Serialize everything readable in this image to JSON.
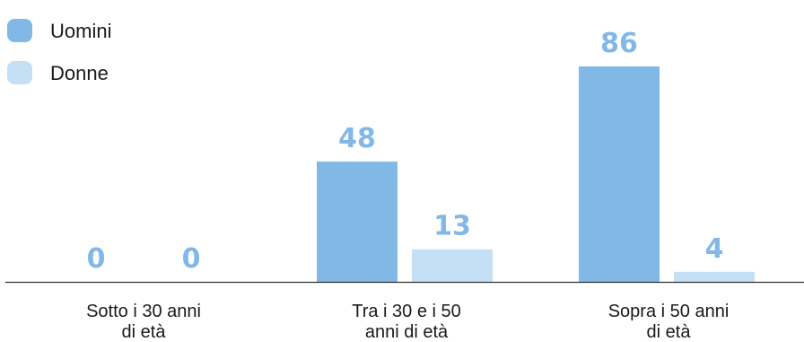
{
  "chart_data": {
    "type": "bar",
    "categories": [
      [
        "Sotto i 30 anni",
        "di età"
      ],
      [
        "Tra i 30 e i 50",
        "anni di età"
      ],
      [
        "Sopra i 50 anni",
        "di età"
      ]
    ],
    "series": [
      {
        "name": "Uomini",
        "color": "#82b8e6",
        "values": [
          0,
          48,
          86
        ]
      },
      {
        "name": "Donne",
        "color": "#c5dff5",
        "values": [
          0,
          13,
          4
        ]
      }
    ],
    "title": "",
    "xlabel": "",
    "ylabel": "",
    "ylim": [
      0,
      86
    ],
    "grid": false,
    "legend_position": "top-left",
    "value_label_color": "#82b8e6",
    "axis_color": "#333333"
  }
}
